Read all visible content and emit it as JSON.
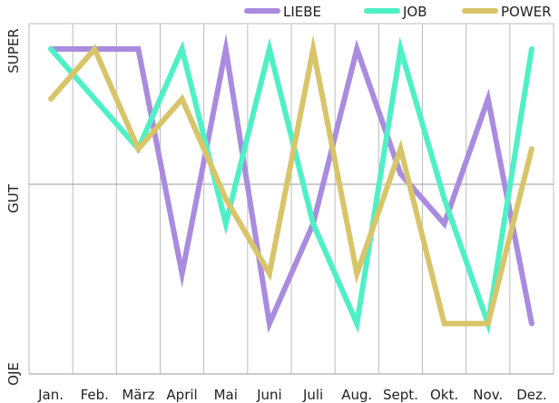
{
  "chart_data": {
    "type": "line",
    "categories": [
      "Jan.",
      "Feb.",
      "März",
      "April",
      "Mai",
      "Juni",
      "Juli",
      "Aug.",
      "Sept.",
      "Okt.",
      "Nov.",
      "Dez."
    ],
    "y_ticks": [
      "OJE",
      "GUT",
      "SUPER"
    ],
    "ylim": [
      0,
      6.5
    ],
    "grid": {
      "vertical": true,
      "horizontal_at": [
        3
      ]
    },
    "legend_position": "top-right",
    "series": [
      {
        "name": "LIEBE",
        "color": "#a98bdf",
        "values": [
          6,
          6,
          6,
          1.5,
          6,
          0.5,
          2.5,
          6,
          3.5,
          2.5,
          5,
          0.5
        ]
      },
      {
        "name": "JOB",
        "color": "#4ff0c6",
        "values": [
          6,
          5,
          4,
          6,
          2.5,
          6,
          2.5,
          0.5,
          6,
          3,
          0.5,
          6
        ]
      },
      {
        "name": "POWER",
        "color": "#d8c56a",
        "values": [
          5,
          6,
          4,
          5,
          3,
          1.5,
          6,
          1.5,
          4,
          0.5,
          0.5,
          4
        ]
      }
    ]
  }
}
